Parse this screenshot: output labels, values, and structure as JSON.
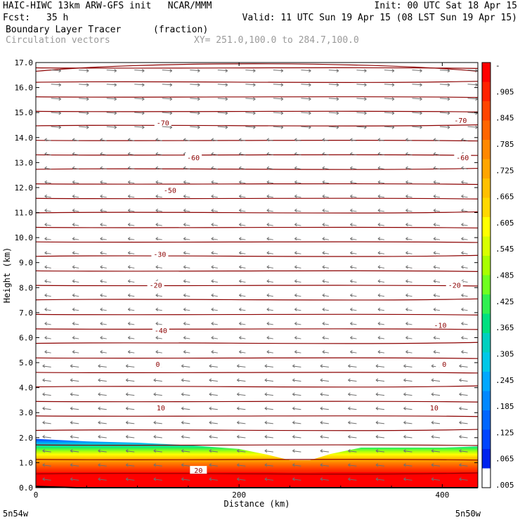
{
  "header": {
    "line1_left": "HAIC-HIWC 13km ARW-GFS init   NCAR/MMM",
    "line1_right": "Init: 00 UTC Sat 18 Apr 15",
    "fcst_label": "Fcst:",
    "fcst_value": "35 h",
    "valid": "Valid: 11 UTC Sun 19 Apr 15 (08 LST Sun 19 Apr 15)",
    "field1_name": "Boundary Layer Tracer",
    "field1_units": "(fraction)",
    "field2_name": "Circulation vectors",
    "xy": "XY= 251.0,100.0 to 284.7,100.0"
  },
  "chart_data": {
    "type": "heatmap",
    "xlabel": "Distance (km)",
    "ylabel": "Height (km)",
    "xlim": [
      0,
      435
    ],
    "ylim": [
      0,
      17
    ],
    "x_ticks": [
      0,
      200,
      400
    ],
    "y_ticks": [
      "0.0",
      "1.0",
      "2.0",
      "3.0",
      "4.0",
      "5.0",
      "6.0",
      "7.0",
      "8.0",
      "9.0",
      "10.0",
      "11.0",
      "12.0",
      "13.0",
      "14.0",
      "15.0",
      "16.0",
      "17.0"
    ],
    "x_endpoint_labels": [
      "5n54w",
      "5n50w"
    ],
    "colorbar": {
      "labels": [
        "-",
        ".905",
        ".845",
        ".785",
        ".725",
        ".665",
        ".605",
        ".545",
        ".485",
        ".425",
        ".365",
        ".305",
        ".245",
        ".185",
        ".125",
        ".065",
        ".005"
      ],
      "colors": [
        "#ff0000",
        "#ff2200",
        "#ff4400",
        "#ff6600",
        "#ff8800",
        "#ffa500",
        "#ffc000",
        "#ffd800",
        "#ffff00",
        "#d8ff00",
        "#a8ff00",
        "#70ff20",
        "#30f050",
        "#00e080",
        "#00d0c0",
        "#00c8e8",
        "#00a8ff",
        "#0088ff",
        "#0066ff",
        "#0044ff",
        "#0022ee",
        "#ffffff"
      ]
    },
    "tracer_top": [
      [
        0,
        1.95
      ],
      [
        50,
        1.85
      ],
      [
        100,
        1.8
      ],
      [
        150,
        1.7
      ],
      [
        200,
        1.55
      ],
      [
        230,
        1.3
      ],
      [
        250,
        1.1
      ],
      [
        270,
        1.1
      ],
      [
        290,
        1.35
      ],
      [
        320,
        1.6
      ],
      [
        350,
        1.6
      ],
      [
        400,
        1.6
      ],
      [
        435,
        1.65
      ]
    ],
    "isotherms": [
      {
        "label": "-70",
        "y_left": 15.1,
        "y_right": 14.9
      },
      {
        "label": "-60",
        "y_left": 13.5,
        "y_right": 13.1
      },
      {
        "label": "-50",
        "y_left": 12.1,
        "y_right": 11.8
      },
      {
        "label": "-30",
        "y_left": 9.6,
        "y_right": 9.4
      },
      {
        "label": "-20",
        "y_left": 8.2,
        "y_right": 8.1
      },
      {
        "label": "-10",
        "y_left": 6.5,
        "y_right": 6.6
      },
      {
        "label": "-40",
        "y_left": 6.5,
        "y_right": 6.6
      },
      {
        "label": "0",
        "y_left": 5.0,
        "y_right": 5.0
      },
      {
        "label": "10",
        "y_left": 3.2,
        "y_right": 3.2
      }
    ],
    "contour_labels": [
      {
        "text": "-70",
        "x": 125,
        "y": 14.6
      },
      {
        "text": "-70",
        "x": 418,
        "y": 14.7
      },
      {
        "text": "-60",
        "x": 155,
        "y": 13.2
      },
      {
        "text": "-60",
        "x": 420,
        "y": 13.2
      },
      {
        "text": "-50",
        "x": 132,
        "y": 11.9
      },
      {
        "text": "-30",
        "x": 122,
        "y": 9.35
      },
      {
        "text": "-20",
        "x": 118,
        "y": 8.1
      },
      {
        "text": "-20",
        "x": 412,
        "y": 8.1
      },
      {
        "text": "-40",
        "x": 123,
        "y": 6.3
      },
      {
        "text": "-10",
        "x": 398,
        "y": 6.5
      },
      {
        "text": "0",
        "x": 120,
        "y": 4.95
      },
      {
        "text": "0",
        "x": 402,
        "y": 4.95
      },
      {
        "text": "10",
        "x": 123,
        "y": 3.2
      },
      {
        "text": "10",
        "x": 392,
        "y": 3.2
      },
      {
        "text": "20",
        "x": 160,
        "y": 0.7
      }
    ]
  }
}
